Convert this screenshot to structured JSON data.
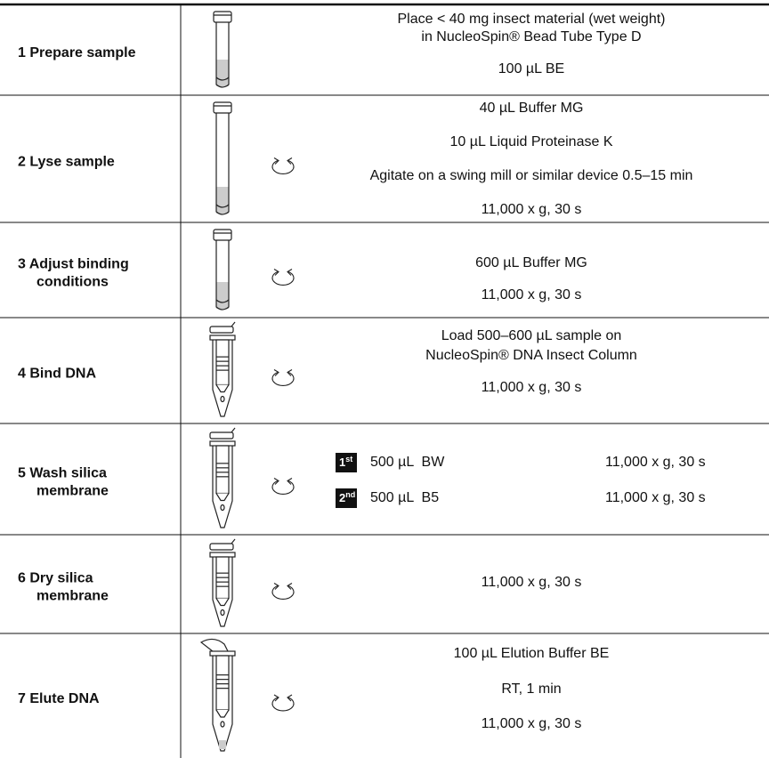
{
  "steps": [
    {
      "label": [
        "1  Prepare sample"
      ],
      "lines": [
        "Place < 40 mg insect material (wet weight)",
        "in NucleoSpin® Bead Tube Type D",
        "100 µL BE"
      ]
    },
    {
      "label": [
        "2  Lyse sample"
      ],
      "lines": [
        "40 µL Buffer MG",
        "10 µL Liquid Proteinase K",
        "Agitate on a swing mill or similar device 0.5–15 min",
        "11,000 x g, 30 s"
      ]
    },
    {
      "label": [
        "3  Adjust binding",
        "conditions"
      ],
      "lines": [
        "600 µL Buffer MG",
        "11,000 x g, 30 s"
      ]
    },
    {
      "label": [
        "4  Bind DNA"
      ],
      "lines": [
        "Load 500–600 µL sample on",
        "NucleoSpin® DNA Insect Column",
        "11,000 x g, 30 s"
      ]
    },
    {
      "label": [
        "5  Wash silica",
        "membrane"
      ],
      "washes": [
        {
          "number": "1",
          "suffix": "st",
          "buffer": "500 µL  BW",
          "spin": "11,000 x g, 30 s"
        },
        {
          "number": "2",
          "suffix": "nd",
          "buffer": "500 µL  B5",
          "spin": "11,000 x g, 30 s"
        }
      ]
    },
    {
      "label": [
        "6  Dry silica",
        "membrane"
      ],
      "lines": [
        "11,000 x g, 30 s"
      ]
    },
    {
      "label": [
        "7  Elute DNA"
      ],
      "lines": [
        "100 µL Elution Buffer BE",
        "RT, 1 min",
        "11,000 x g, 30 s"
      ]
    }
  ]
}
